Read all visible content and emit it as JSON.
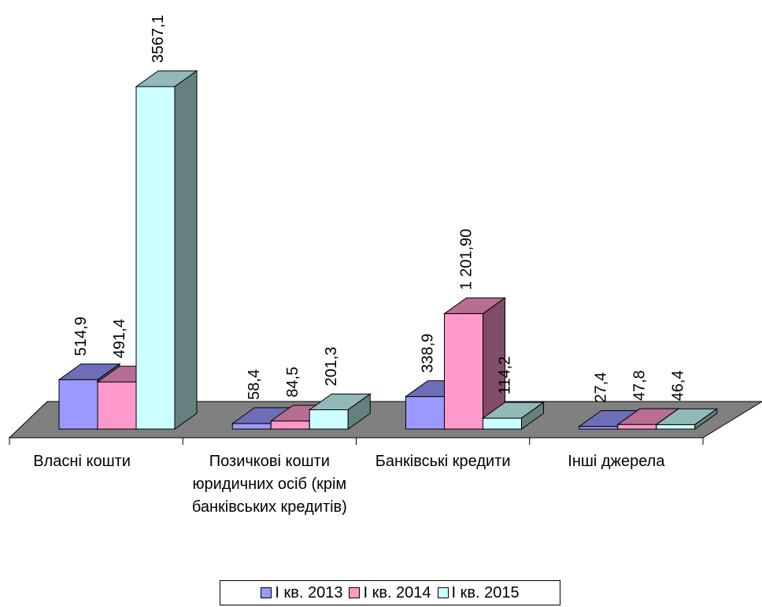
{
  "chart_data": {
    "type": "bar3d",
    "categories": [
      "Власні кошти",
      "Позичкові кошти юридичних осіб (крім банківських кредитів)",
      "Банківські кредити",
      "Інші джерела"
    ],
    "series": [
      {
        "name": "I кв. 2013",
        "color": "#9999ff",
        "values": [
          514.9,
          58.4,
          338.9,
          27.4
        ],
        "value_labels": [
          "514,9",
          "58,4",
          "338,9",
          "27,4"
        ]
      },
      {
        "name": "I кв. 2014",
        "color": "#ff99cc",
        "values": [
          491.4,
          84.5,
          1201.9,
          47.8
        ],
        "value_labels": [
          "491,4",
          "84,5",
          "1 201,90",
          "47,8"
        ]
      },
      {
        "name": "I кв. 2015",
        "color": "#ccffff",
        "values": [
          3567.1,
          201.3,
          114.2,
          46.4
        ],
        "value_labels": [
          "3567,1",
          "201,3",
          "114,2",
          "46,4"
        ]
      }
    ],
    "legend": "bottom"
  }
}
